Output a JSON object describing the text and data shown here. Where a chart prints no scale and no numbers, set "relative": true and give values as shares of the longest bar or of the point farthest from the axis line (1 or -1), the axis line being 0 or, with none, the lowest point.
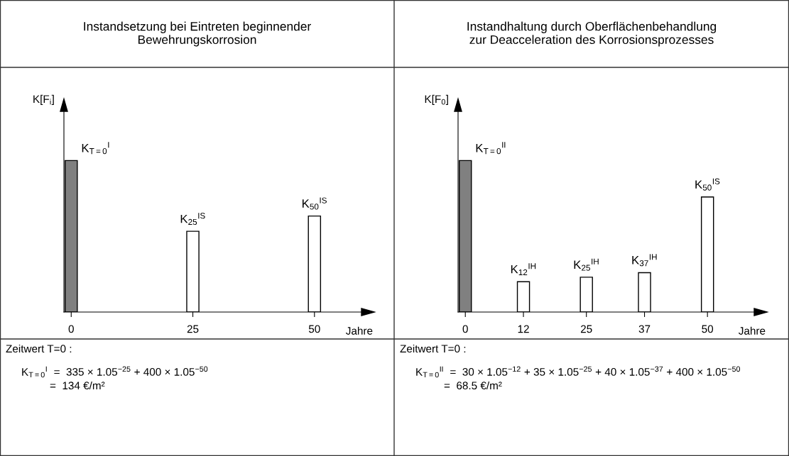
{
  "chart_data": [
    {
      "type": "bar",
      "relative": true,
      "title": "Instandsetzung bei Eintreten beginnender\nBewehrungskorrosion",
      "ylabel": "K[F$_{i}$]",
      "xlabel": "Jahre",
      "x": [
        0,
        25,
        50
      ],
      "values": [
        1,
        0.533,
        0.634
      ],
      "colors": [
        "#808080",
        "#ffffff",
        "#ffffff"
      ],
      "xlim": [
        -1.5,
        62
      ],
      "xticks": [
        0,
        25,
        50
      ],
      "annotations": [
        {
          "text": "K$_{T=0}$$^{I}$",
          "x": 0,
          "y": 1
        },
        {
          "text": "K$_{25}$$^{IS}$",
          "x": 25,
          "y": 0.533
        },
        {
          "text": "K$_{50}$$^{IS}$",
          "x": 50,
          "y": 0.634
        },
        "Zeitwert T=0 :",
        "K$_{T=0}$$^{I}$  =  335 × 1.05$^{−25}$ + 400 × 1.05$^{−50}$",
        "=  134 €/m²"
      ]
    },
    {
      "type": "bar",
      "relative": true,
      "title": "Instandhaltung durch Oberflächenbehandlung\nzur Deacceleration des Korrosionsprozesses",
      "ylabel": "K[F$_{0}$]",
      "xlabel": "Jahre",
      "x": [
        0,
        12,
        25,
        37,
        50
      ],
      "values": [
        1,
        0.2,
        0.23,
        0.26,
        0.76
      ],
      "colors": [
        "#808080",
        "#ffffff",
        "#ffffff",
        "#ffffff",
        "#ffffff"
      ],
      "xlim": [
        -1.5,
        62
      ],
      "xticks": [
        0,
        12,
        25,
        37,
        50
      ],
      "annotations": [
        {
          "text": "K$_{T=0}$$^{II}$",
          "x": 0,
          "y": 1
        },
        {
          "text": "K$_{12}$$^{IH}$",
          "x": 12,
          "y": 0.2
        },
        {
          "text": "K$_{25}$$^{IH}$",
          "x": 25,
          "y": 0.23
        },
        {
          "text": "K$_{37}$$^{IH}$",
          "x": 37,
          "y": 0.26
        },
        {
          "text": "K$_{50}$$^{IS}$",
          "x": 50,
          "y": 0.76
        },
        "Zeitwert T=0 :",
        "K$_{T=0}$$^{II}$  =  30 × 1.05$^{−12}$ + 35 × 1.05$^{−25}$ + 40 × 1.05$^{−37}$ + 400 × 1.05$^{−50}$",
        "=  68.5 €/m²"
      ]
    }
  ]
}
